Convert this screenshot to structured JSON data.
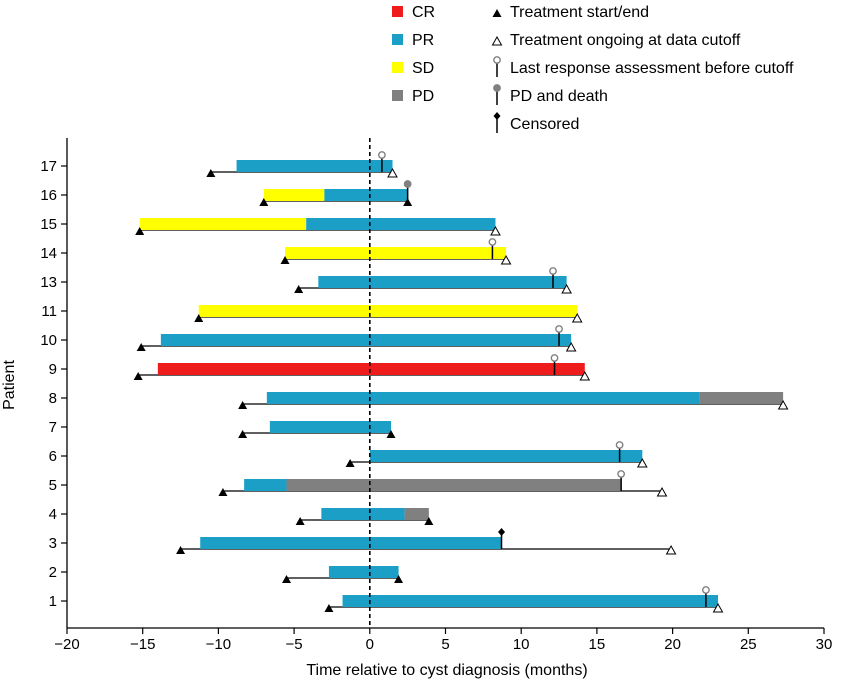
{
  "chart_data": {
    "type": "swimmer",
    "xlabel": "Time relative to cyst diagnosis (months)",
    "ylabel": "Patient",
    "xlim": [
      -20,
      30
    ],
    "xticks": [
      -20,
      -15,
      -10,
      -5,
      0,
      5,
      10,
      15,
      20,
      25,
      30
    ],
    "xtick_labels": [
      "−20",
      "−15",
      "−10",
      "−5",
      "0",
      "5",
      "10",
      "15",
      "20",
      "25",
      "30"
    ],
    "reference_line_x": 0,
    "colors": {
      "CR": "#ee1c1c",
      "PR": "#1b9fc6",
      "SD": "#ffff00",
      "PD": "#808080"
    },
    "legend_responses": [
      {
        "key": "CR",
        "label": "CR"
      },
      {
        "key": "PR",
        "label": "PR"
      },
      {
        "key": "SD",
        "label": "SD"
      },
      {
        "key": "PD",
        "label": "PD"
      }
    ],
    "legend_markers": [
      {
        "key": "start_end",
        "label": "Treatment start/end"
      },
      {
        "key": "ongoing",
        "label": "Treatment ongoing at data cutoff"
      },
      {
        "key": "last_assessment",
        "label": "Last response assessment before cutoff"
      },
      {
        "key": "pd_death",
        "label": "PD and death"
      },
      {
        "key": "censored",
        "label": "Censored"
      }
    ],
    "patients": [
      {
        "id": "17",
        "treatment": [
          -10.5,
          1.5
        ],
        "end_marker": "ongoing",
        "segments": [
          {
            "r": "PR",
            "from": -8.8,
            "to": 1.5
          }
        ],
        "last_assessment": 0.8
      },
      {
        "id": "16",
        "treatment": [
          -7.0,
          2.5
        ],
        "end_marker": "end",
        "segments": [
          {
            "r": "SD",
            "from": -7.0,
            "to": -3.0
          },
          {
            "r": "PR",
            "from": -3.0,
            "to": 2.5
          }
        ],
        "pd_death": 2.5
      },
      {
        "id": "15",
        "treatment": [
          -15.2,
          8.3
        ],
        "end_marker": "ongoing",
        "segments": [
          {
            "r": "SD",
            "from": -15.2,
            "to": -4.2
          },
          {
            "r": "PR",
            "from": -4.2,
            "to": 8.3
          }
        ]
      },
      {
        "id": "14",
        "treatment": [
          -5.6,
          9.0
        ],
        "end_marker": "ongoing",
        "segments": [
          {
            "r": "SD",
            "from": -5.6,
            "to": 9.0
          }
        ],
        "last_assessment": 8.1
      },
      {
        "id": "13",
        "treatment": [
          -4.7,
          13.0
        ],
        "end_marker": "ongoing",
        "segments": [
          {
            "r": "PR",
            "from": -3.4,
            "to": 13.0
          }
        ],
        "last_assessment": 12.1
      },
      {
        "id": "11",
        "treatment": [
          -11.3,
          13.7
        ],
        "end_marker": "ongoing",
        "segments": [
          {
            "r": "SD",
            "from": -11.3,
            "to": 13.7
          }
        ]
      },
      {
        "id": "10",
        "treatment": [
          -15.1,
          13.3
        ],
        "end_marker": "ongoing",
        "segments": [
          {
            "r": "PR",
            "from": -13.8,
            "to": 13.3
          }
        ],
        "last_assessment": 12.5
      },
      {
        "id": "9",
        "treatment": [
          -15.3,
          14.2
        ],
        "end_marker": "ongoing",
        "segments": [
          {
            "r": "CR",
            "from": -14.0,
            "to": 14.2
          }
        ],
        "last_assessment": 12.2
      },
      {
        "id": "8",
        "treatment": [
          -8.4,
          27.3
        ],
        "end_marker": "ongoing",
        "segments": [
          {
            "r": "PR",
            "from": -6.8,
            "to": 21.8
          },
          {
            "r": "PD",
            "from": 21.8,
            "to": 27.3
          }
        ]
      },
      {
        "id": "7",
        "treatment": [
          -8.4,
          1.4
        ],
        "end_marker": "end",
        "segments": [
          {
            "r": "PR",
            "from": -6.6,
            "to": 1.4
          }
        ]
      },
      {
        "id": "6",
        "treatment": [
          -1.3,
          18.0
        ],
        "end_marker": "ongoing",
        "segments": [
          {
            "r": "PR",
            "from": 0.0,
            "to": 18.0
          }
        ],
        "last_assessment": 16.5
      },
      {
        "id": "5",
        "treatment": [
          -9.7,
          19.3
        ],
        "end_marker": "ongoing",
        "segments": [
          {
            "r": "PR",
            "from": -8.3,
            "to": -5.5
          },
          {
            "r": "PD",
            "from": -5.5,
            "to": 16.6
          }
        ],
        "last_assessment": 16.6
      },
      {
        "id": "4",
        "treatment": [
          -4.6,
          3.9
        ],
        "end_marker": "end",
        "segments": [
          {
            "r": "PR",
            "from": -3.2,
            "to": 2.3
          },
          {
            "r": "PD",
            "from": 2.3,
            "to": 3.9
          }
        ]
      },
      {
        "id": "3",
        "treatment": [
          -12.5,
          19.9
        ],
        "end_marker": "ongoing",
        "segments": [
          {
            "r": "PR",
            "from": -11.2,
            "to": 8.7
          }
        ],
        "censored": 8.7
      },
      {
        "id": "2",
        "treatment": [
          -5.5,
          1.9
        ],
        "end_marker": "end",
        "segments": [
          {
            "r": "PR",
            "from": -2.7,
            "to": 1.9
          }
        ]
      },
      {
        "id": "1",
        "treatment": [
          -2.7,
          23.0
        ],
        "end_marker": "ongoing",
        "segments": [
          {
            "r": "PR",
            "from": -1.8,
            "to": 23.0
          }
        ],
        "last_assessment": 22.2
      }
    ]
  }
}
